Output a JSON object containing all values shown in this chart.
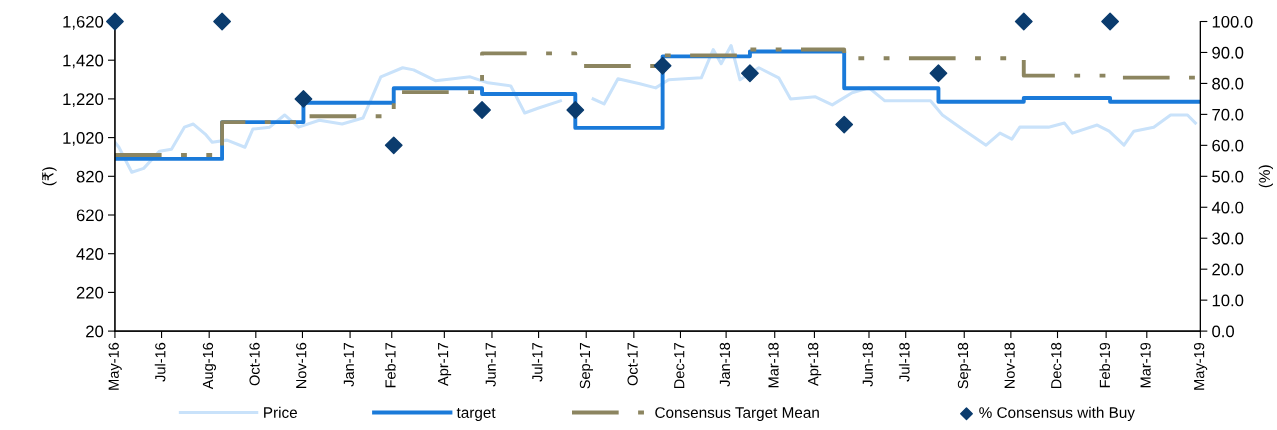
{
  "chart_data": {
    "type": "line",
    "ylabel": "(₹)",
    "y2label": "(%)",
    "xlim": [
      "2016-05-25",
      "2019-05-24"
    ],
    "xticks": [
      {
        "value": "2016-05-25",
        "label": "May-16"
      },
      {
        "value": "2016-07-11",
        "label": "Jul-16"
      },
      {
        "value": "2016-08-28",
        "label": "Aug-16"
      },
      {
        "value": "2016-10-14",
        "label": "Oct-16"
      },
      {
        "value": "2016-11-30",
        "label": "Nov-16"
      },
      {
        "value": "2017-01-17",
        "label": "Jan-17"
      },
      {
        "value": "2017-02-28",
        "label": "Feb-17"
      },
      {
        "value": "2017-04-22",
        "label": "Apr-17"
      },
      {
        "value": "2017-06-09",
        "label": "Jun-17"
      },
      {
        "value": "2017-07-26",
        "label": "Jul-17"
      },
      {
        "value": "2017-09-12",
        "label": "Sep-17"
      },
      {
        "value": "2017-10-30",
        "label": "Oct-17"
      },
      {
        "value": "2017-12-16",
        "label": "Dec-17"
      },
      {
        "value": "2018-01-31",
        "label": "Jan-18"
      },
      {
        "value": "2018-03-21",
        "label": "Mar-18"
      },
      {
        "value": "2018-04-30",
        "label": "Apr-18"
      },
      {
        "value": "2018-06-24",
        "label": "Jun-18"
      },
      {
        "value": "2018-07-31",
        "label": "Jul-18"
      },
      {
        "value": "2018-09-28",
        "label": "Sep-18"
      },
      {
        "value": "2018-11-14",
        "label": "Nov-18"
      },
      {
        "value": "2018-12-31",
        "label": "Dec-18"
      },
      {
        "value": "2019-02-18",
        "label": "Feb-19"
      },
      {
        "value": "2019-03-31",
        "label": "Mar-19"
      },
      {
        "value": "2019-05-24",
        "label": "May-19"
      }
    ],
    "ylim": [
      20,
      1620
    ],
    "yticks": [
      {
        "value": 20,
        "label": "20"
      },
      {
        "value": 220,
        "label": "220"
      },
      {
        "value": 420,
        "label": "420"
      },
      {
        "value": 620,
        "label": "620"
      },
      {
        "value": 820,
        "label": "820"
      },
      {
        "value": 1020,
        "label": "1,020"
      },
      {
        "value": 1220,
        "label": "1,220"
      },
      {
        "value": 1420,
        "label": "1,420"
      },
      {
        "value": 1620,
        "label": "1,620"
      }
    ],
    "y2lim": [
      0,
      100
    ],
    "y2ticks": [
      {
        "value": 0,
        "label": "0.0"
      },
      {
        "value": 10,
        "label": "10.0"
      },
      {
        "value": 20,
        "label": "20.0"
      },
      {
        "value": 30,
        "label": "30.0"
      },
      {
        "value": 40,
        "label": "40.0"
      },
      {
        "value": 50,
        "label": "50.0"
      },
      {
        "value": 60,
        "label": "60.0"
      },
      {
        "value": 70,
        "label": "70.0"
      },
      {
        "value": 80,
        "label": "80.0"
      },
      {
        "value": 90,
        "label": "90.0"
      },
      {
        "value": 100,
        "label": "100.0"
      }
    ],
    "grid": false,
    "legend": "bottom",
    "series": [
      {
        "name": "Price",
        "color": "#c9e2fa",
        "line_style": "solid",
        "x": [
          "2016-05-25",
          "2016-05-29",
          "2016-06-11",
          "2016-06-23",
          "2016-07-09",
          "2016-07-21",
          "2016-08-03",
          "2016-08-12",
          "2016-08-24",
          "2016-08-31",
          "2016-09-15",
          "2016-10-03",
          "2016-10-11",
          "2016-10-28",
          "2016-11-12",
          "2016-11-26",
          "2016-12-17",
          "2017-01-09",
          "2017-01-30",
          "2017-02-17",
          "2017-03-11",
          "2017-03-22",
          "2017-04-13",
          "2017-05-01",
          "2017-05-18",
          "2017-06-05",
          "2017-06-28",
          "2017-07-12",
          "2017-07-26",
          "2017-08-17",
          "2017-08-31",
          "2017-09-19",
          "2017-09-30",
          "2017-10-14",
          "2017-11-05",
          "2017-11-21",
          "2017-12-04",
          "2018-01-06",
          "2018-01-18",
          "2018-01-26",
          "2018-02-05",
          "2018-02-14",
          "2018-03-05",
          "2018-03-25",
          "2018-04-06",
          "2018-05-01",
          "2018-05-18",
          "2018-06-07",
          "2018-06-24",
          "2018-07-10",
          "2018-07-30",
          "2018-08-25",
          "2018-09-06",
          "2018-09-26",
          "2018-10-20",
          "2018-11-03",
          "2018-11-15",
          "2018-11-23",
          "2018-12-22",
          "2019-01-07",
          "2019-01-15",
          "2019-02-09",
          "2019-02-21",
          "2019-03-08",
          "2019-03-18",
          "2019-04-07",
          "2019-04-24",
          "2019-05-11",
          "2019-05-19"
        ],
        "values": [
          996,
          970,
          841,
          861,
          950,
          960,
          1074,
          1090,
          1038,
          996,
          1007,
          970,
          1064,
          1074,
          1137,
          1074,
          1110,
          1090,
          1121,
          1334,
          1381,
          1370,
          1314,
          1324,
          1334,
          1303,
          1287,
          1147,
          1173,
          1210,
          null,
          1220,
          1194,
          1324,
          1298,
          1277,
          1319,
          1329,
          1475,
          1402,
          1496,
          1319,
          1381,
          1329,
          1220,
          1231,
          1189,
          1252,
          1277,
          1210,
          1210,
          1210,
          1137,
          1064,
          981,
          1043,
          1012,
          1074,
          1074,
          1095,
          1043,
          1085,
          1053,
          981,
          1053,
          1074,
          1137,
          1137,
          1095
        ]
      },
      {
        "name": "target",
        "type": "step",
        "color": "#1a7ad9",
        "line_style": "solid",
        "x": [
          "2016-05-25",
          "2016-09-10",
          "2016-12-01",
          "2017-03-02",
          "2017-05-30",
          "2017-09-01",
          "2017-11-28",
          "2018-02-24",
          "2018-05-30",
          "2018-09-02",
          "2018-11-27",
          "2019-02-22",
          "2019-05-24"
        ],
        "values": [
          910,
          1100,
          1200,
          1275,
          1245,
          1070,
          1440,
          1465,
          1275,
          1205,
          1225,
          1205,
          1205
        ]
      },
      {
        "name": "Consensus Target Mean",
        "type": "step",
        "color": "#8c8560",
        "line_style": "dashed",
        "x": [
          "2016-05-25",
          "2016-09-10",
          "2016-12-01",
          "2017-03-02",
          "2017-05-30",
          "2017-09-01",
          "2017-11-28",
          "2018-02-24",
          "2018-05-30",
          "2018-11-27",
          "2019-02-22",
          "2019-05-24"
        ],
        "values": [
          930,
          1100,
          1130,
          1255,
          1455,
          1390,
          1445,
          1475,
          1430,
          1340,
          1330,
          1330
        ]
      },
      {
        "name": "% Consensus with Buy",
        "type": "scatter",
        "axis": "y2",
        "color": "#0b3c6e",
        "marker": "diamond",
        "x": [
          "2016-05-25",
          "2016-09-10",
          "2016-12-01",
          "2017-03-02",
          "2017-05-30",
          "2017-09-01",
          "2017-11-28",
          "2018-02-24",
          "2018-05-30",
          "2018-09-02",
          "2018-11-27",
          "2019-02-22"
        ],
        "values": [
          100,
          100,
          75,
          60,
          71.4,
          71.4,
          85.7,
          83.3,
          66.7,
          83.3,
          100,
          100
        ]
      }
    ]
  }
}
